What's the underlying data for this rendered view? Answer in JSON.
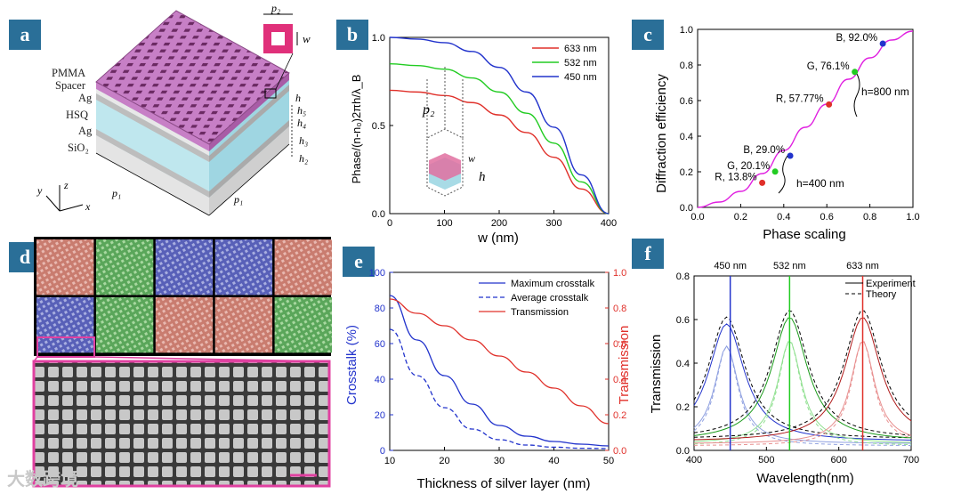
{
  "panels": {
    "a": "a",
    "b": "b",
    "c": "c",
    "d": "d",
    "e": "e",
    "f": "f"
  },
  "panel_a": {
    "layers": [
      "PMMA",
      "Spacer",
      "Ag",
      "HSQ",
      "Ag",
      "SiO₂"
    ],
    "inset_p": "p₂",
    "inset_w": "w",
    "dims": {
      "h": "h",
      "h5": "h₅",
      "h4": "h₄",
      "h3": "h₃",
      "h2": "h₂",
      "p1_left": "p₁",
      "p1_bottom": "p₁"
    },
    "axes": {
      "x": "x",
      "y": "y",
      "z": "z"
    }
  },
  "panel_b": {
    "inset_p2": "p₂",
    "inset_w": "w",
    "inset_h": "h",
    "chart_data": {
      "type": "line",
      "ylabel": "Phase/(n-n₀)2πh/λ_B",
      "xlabel": "w (nm)",
      "xlim": [
        0,
        400
      ],
      "ylim": [
        0,
        1.0
      ],
      "xticks": [
        "0",
        "100",
        "200",
        "300",
        "400"
      ],
      "yticks": [
        "0.0",
        "0.5",
        "1.0"
      ],
      "series": [
        {
          "name": "633 nm",
          "color": "#e0302a",
          "x": [
            0,
            50,
            100,
            150,
            200,
            250,
            300,
            350,
            400
          ],
          "y": [
            0.7,
            0.69,
            0.67,
            0.63,
            0.56,
            0.46,
            0.32,
            0.14,
            0.0
          ]
        },
        {
          "name": "532 nm",
          "color": "#22cc22",
          "x": [
            0,
            50,
            100,
            150,
            200,
            250,
            300,
            350,
            400
          ],
          "y": [
            0.85,
            0.84,
            0.82,
            0.77,
            0.69,
            0.57,
            0.4,
            0.18,
            0.0
          ]
        },
        {
          "name": "450 nm",
          "color": "#2233cc",
          "x": [
            0,
            50,
            100,
            150,
            200,
            250,
            300,
            350,
            400
          ],
          "y": [
            1.0,
            0.99,
            0.97,
            0.92,
            0.83,
            0.69,
            0.49,
            0.22,
            0.0
          ]
        }
      ]
    }
  },
  "panel_c": {
    "bracket_800": "h=800 nm",
    "bracket_400": "h=400 nm",
    "chart_data": {
      "type": "line",
      "xlabel": "Phase scaling",
      "ylabel": "Diffraction efficiency",
      "xlim": [
        0,
        1.0
      ],
      "ylim": [
        0,
        1.0
      ],
      "xticks": [
        "0.0",
        "0.2",
        "0.4",
        "0.6",
        "0.8",
        "1.0"
      ],
      "yticks": [
        "0.0",
        "0.2",
        "0.4",
        "0.6",
        "0.8",
        "1.0"
      ],
      "series": [
        {
          "name": "curve",
          "color": "#e020e0",
          "x": [
            0,
            0.1,
            0.2,
            0.3,
            0.4,
            0.5,
            0.6,
            0.7,
            0.8,
            0.9,
            1.0
          ],
          "y": [
            0,
            0.03,
            0.09,
            0.19,
            0.32,
            0.45,
            0.58,
            0.72,
            0.84,
            0.94,
            0.99
          ]
        }
      ],
      "points": [
        {
          "label": "B, 92.0%",
          "x": 0.86,
          "y": 0.92,
          "color": "#2233cc"
        },
        {
          "label": "G, 76.1%",
          "x": 0.73,
          "y": 0.761,
          "color": "#22cc22"
        },
        {
          "label": "R, 57.77%",
          "x": 0.61,
          "y": 0.578,
          "color": "#e0302a"
        },
        {
          "label": "B, 29.0%",
          "x": 0.43,
          "y": 0.29,
          "color": "#2233cc"
        },
        {
          "label": "G, 20.1%",
          "x": 0.36,
          "y": 0.201,
          "color": "#22cc22"
        },
        {
          "label": "R, 13.8%",
          "x": 0.3,
          "y": 0.138,
          "color": "#e0302a"
        }
      ]
    }
  },
  "panel_e": {
    "chart_data": {
      "type": "line",
      "xlabel": "Thickness of silver layer (nm)",
      "ylabel_left": "Crosstalk (%)",
      "ylabel_right": "Transmission",
      "xlim": [
        10,
        50
      ],
      "ylim_left": [
        0,
        100
      ],
      "ylim_right": [
        0,
        1.0
      ],
      "xticks": [
        "10",
        "20",
        "30",
        "40",
        "50"
      ],
      "yticks_left": [
        "0",
        "20",
        "40",
        "60",
        "80",
        "100"
      ],
      "yticks_right": [
        "0.0",
        "0.2",
        "0.4",
        "0.6",
        "0.8",
        "1.0"
      ],
      "series": [
        {
          "name": "Maximum crosstalk",
          "color": "#2233cc",
          "dash": false,
          "axis": "left",
          "x": [
            10,
            15,
            20,
            25,
            30,
            35,
            40,
            45,
            50
          ],
          "y": [
            87,
            62,
            42,
            26,
            14,
            8,
            5,
            3.5,
            2.5
          ]
        },
        {
          "name": "Average crosstalk",
          "color": "#2233cc",
          "dash": true,
          "axis": "left",
          "x": [
            10,
            15,
            20,
            25,
            30,
            35,
            40,
            45,
            50
          ],
          "y": [
            68,
            42,
            24,
            12,
            6,
            3,
            1.8,
            1.2,
            1
          ]
        },
        {
          "name": "Transmission",
          "color": "#e0302a",
          "dash": false,
          "axis": "right",
          "x": [
            10,
            15,
            20,
            25,
            30,
            35,
            40,
            45,
            50
          ],
          "y": [
            0.85,
            0.77,
            0.7,
            0.62,
            0.53,
            0.44,
            0.35,
            0.25,
            0.15
          ]
        }
      ]
    }
  },
  "panel_f": {
    "chart_data": {
      "type": "line",
      "xlabel": "Wavelength(nm)",
      "ylabel": "Transmission",
      "xlim": [
        400,
        700
      ],
      "ylim": [
        0,
        0.8
      ],
      "xticks": [
        "400",
        "500",
        "600",
        "700"
      ],
      "yticks": [
        "0.0",
        "0.2",
        "0.4",
        "0.6",
        "0.8"
      ],
      "markers": [
        {
          "label": "450 nm",
          "x": 450,
          "color": "#2233cc"
        },
        {
          "label": "532 nm",
          "x": 532,
          "color": "#22cc22"
        },
        {
          "label": "633 nm",
          "x": 633,
          "color": "#e0302a"
        }
      ],
      "legend": [
        "Experiment",
        "Theory"
      ],
      "peaks": [
        {
          "center": 445,
          "amp": 0.54,
          "color": "#2233cc",
          "light": "#8fa0e0"
        },
        {
          "center": 532,
          "amp": 0.57,
          "color": "#1a9a1a",
          "light": "#90e090"
        },
        {
          "center": 633,
          "amp": 0.57,
          "color": "#b01a1a",
          "light": "#e89090"
        }
      ]
    }
  },
  "watermark": "大数跨境"
}
